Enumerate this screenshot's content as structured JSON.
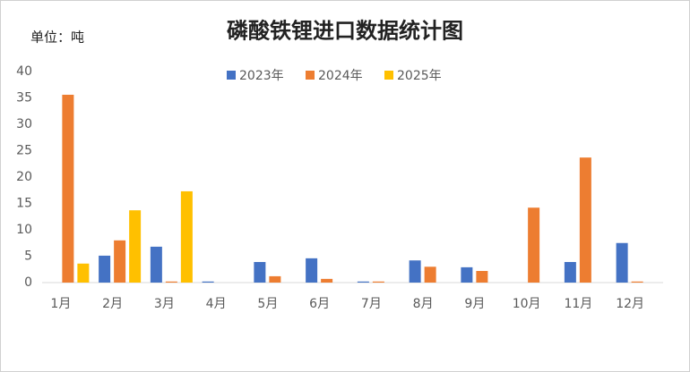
{
  "chart_data": {
    "type": "bar",
    "title": "磷酸铁锂进口数据统计图",
    "unit_label": "单位：吨",
    "categories": [
      "1月",
      "2月",
      "3月",
      "4月",
      "5月",
      "6月",
      "7月",
      "8月",
      "9月",
      "10月",
      "11月",
      "12月"
    ],
    "series": [
      {
        "name": "2023年",
        "color": "#4472c4",
        "values": [
          0,
          5.1,
          6.8,
          0.2,
          3.9,
          4.6,
          0.2,
          4.2,
          2.9,
          0,
          3.9,
          7.5
        ]
      },
      {
        "name": "2024年",
        "color": "#ed7d31",
        "values": [
          35.6,
          8.0,
          0.2,
          0,
          1.2,
          0.7,
          0.2,
          3.0,
          2.2,
          14.2,
          23.7,
          0.2
        ]
      },
      {
        "name": "2025年",
        "color": "#ffc000",
        "values": [
          3.6,
          13.7,
          17.3,
          null,
          null,
          null,
          null,
          null,
          null,
          null,
          null,
          null
        ]
      }
    ],
    "ylim": [
      0,
      40
    ],
    "yticks": [
      0,
      5,
      10,
      15,
      20,
      25,
      30,
      35,
      40
    ],
    "grid": false,
    "legend": "top"
  }
}
